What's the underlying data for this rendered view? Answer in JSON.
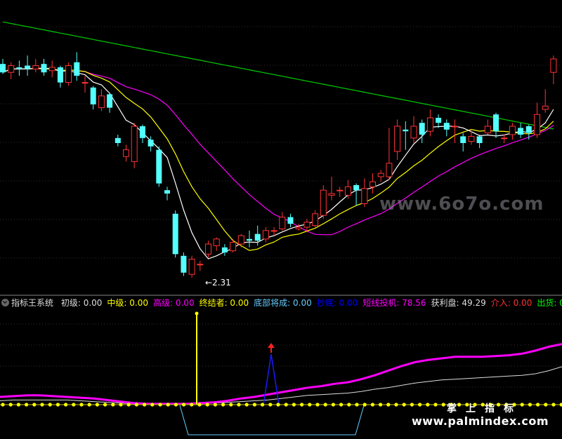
{
  "indicator": {
    "name": "指标王系统",
    "items": [
      {
        "label": "初级:",
        "value": "0.00",
        "color": "#dddddd"
      },
      {
        "label": "中级:",
        "value": "0.00",
        "color": "#ffff00"
      },
      {
        "label": "高级:",
        "value": "0.00",
        "color": "#ff00ff"
      },
      {
        "label": "终结者:",
        "value": "0.00",
        "color": "#ffff00"
      },
      {
        "label": "底部将成:",
        "value": "0.00",
        "color": "#66ccff"
      },
      {
        "label": "抄底:",
        "value": "0.00",
        "color": "#0000ff"
      },
      {
        "label": "短线投机:",
        "value": "78.56",
        "color": "#ff00ff"
      },
      {
        "label": "获利盘:",
        "value": "49.29",
        "color": "#dddddd"
      },
      {
        "label": "介入:",
        "value": "0.00",
        "color": "#ff3333"
      },
      {
        "label": "出货:",
        "value": "0.00",
        "color": "#00ff00"
      }
    ]
  },
  "low_marker": "←2.31",
  "watermarks": {
    "domain": "www.6o7o.com",
    "brand": "掌上指标",
    "url": "www.palmindex.com"
  },
  "colors": {
    "up": "#ff3333",
    "down": "#54ffff",
    "ma_short": "#ffffff",
    "ma_mid": "#ffff00",
    "ma_long": "#ff00ff",
    "ma_xlong": "#00cc00"
  },
  "chart_data": [
    {
      "type": "candlestick",
      "title": "",
      "ylim": [
        2.2,
        3.95
      ],
      "grid": true,
      "low_label": 2.31,
      "candles": [
        [
          3.57,
          3.52,
          3.6,
          3.51
        ],
        [
          3.52,
          3.56,
          3.58,
          3.48
        ],
        [
          3.55,
          3.54,
          3.59,
          3.5
        ],
        [
          3.56,
          3.54,
          3.62,
          3.5
        ],
        [
          3.54,
          3.56,
          3.6,
          3.52
        ],
        [
          3.57,
          3.52,
          3.6,
          3.5
        ],
        [
          3.53,
          3.55,
          3.59,
          3.49
        ],
        [
          3.55,
          3.46,
          3.56,
          3.43
        ],
        [
          3.46,
          3.56,
          3.58,
          3.44
        ],
        [
          3.58,
          3.5,
          3.64,
          3.47
        ],
        [
          3.46,
          3.46,
          3.5,
          3.4
        ],
        [
          3.43,
          3.33,
          3.44,
          3.3
        ],
        [
          3.31,
          3.38,
          3.42,
          3.29
        ],
        [
          3.39,
          3.31,
          3.4,
          3.28
        ],
        [
          3.13,
          3.1,
          3.15,
          3.08
        ],
        [
          3.02,
          3.06,
          3.09,
          2.99
        ],
        [
          2.99,
          3.2,
          3.22,
          2.95
        ],
        [
          3.2,
          3.13,
          3.21,
          3.1
        ],
        [
          3.12,
          3.08,
          3.14,
          3.05
        ],
        [
          3.06,
          2.86,
          3.08,
          2.84
        ],
        [
          2.82,
          2.8,
          2.84,
          2.76
        ],
        [
          2.68,
          2.44,
          2.7,
          2.42
        ],
        [
          2.43,
          2.33,
          2.45,
          2.31
        ],
        [
          2.32,
          2.41,
          2.43,
          2.3
        ],
        [
          2.38,
          2.38,
          2.4,
          2.34
        ],
        [
          2.44,
          2.5,
          2.52,
          2.42
        ],
        [
          2.49,
          2.53,
          2.54,
          2.46
        ],
        [
          2.48,
          2.45,
          2.5,
          2.43
        ],
        [
          2.46,
          2.51,
          2.53,
          2.45
        ],
        [
          2.5,
          2.55,
          2.56,
          2.48
        ],
        [
          2.53,
          2.52,
          2.58,
          2.48
        ],
        [
          2.56,
          2.52,
          2.61,
          2.49
        ],
        [
          2.53,
          2.58,
          2.6,
          2.51
        ],
        [
          2.58,
          2.58,
          2.6,
          2.55
        ],
        [
          2.59,
          2.66,
          2.69,
          2.58
        ],
        [
          2.66,
          2.62,
          2.68,
          2.6
        ],
        [
          2.59,
          2.6,
          2.62,
          2.58
        ],
        [
          2.6,
          2.63,
          2.65,
          2.57
        ],
        [
          2.61,
          2.68,
          2.7,
          2.6
        ],
        [
          2.67,
          2.82,
          2.85,
          2.65
        ],
        [
          2.79,
          2.8,
          2.9,
          2.76
        ],
        [
          2.82,
          2.82,
          2.84,
          2.78
        ],
        [
          2.79,
          2.84,
          2.88,
          2.77
        ],
        [
          2.85,
          2.82,
          2.86,
          2.73
        ],
        [
          2.74,
          2.83,
          2.89,
          2.72
        ],
        [
          2.84,
          2.87,
          2.92,
          2.8
        ],
        [
          2.9,
          2.92,
          2.94,
          2.87
        ],
        [
          2.9,
          2.98,
          3.19,
          2.88
        ],
        [
          3.05,
          3.2,
          3.24,
          3.0
        ],
        [
          3.18,
          3.17,
          3.23,
          3.06
        ],
        [
          3.13,
          3.2,
          3.26,
          3.1
        ],
        [
          3.22,
          3.15,
          3.24,
          3.1
        ],
        [
          3.17,
          3.25,
          3.3,
          3.14
        ],
        [
          3.25,
          3.22,
          3.27,
          3.19
        ],
        [
          3.22,
          3.18,
          3.24,
          3.14
        ],
        [
          3.2,
          3.2,
          3.24,
          3.1
        ],
        [
          3.14,
          3.1,
          3.16,
          3.05
        ],
        [
          3.11,
          3.14,
          3.18,
          3.09
        ],
        [
          3.14,
          3.1,
          3.15,
          3.07
        ],
        [
          3.16,
          3.2,
          3.24,
          3.15
        ],
        [
          3.27,
          3.17,
          3.28,
          3.13
        ],
        [
          3.13,
          3.13,
          3.15,
          3.1
        ],
        [
          3.15,
          3.2,
          3.22,
          3.12
        ],
        [
          3.19,
          3.15,
          3.22,
          3.13
        ],
        [
          3.2,
          3.16,
          3.21,
          3.12
        ],
        [
          3.15,
          3.27,
          3.34,
          3.13
        ],
        [
          3.3,
          3.32,
          3.42,
          3.28
        ],
        [
          3.52,
          3.6,
          3.62,
          3.45
        ]
      ]
    },
    {
      "type": "line",
      "title": "",
      "grid": true,
      "series": [
        {
          "name": "短线投机",
          "values": [
            10,
            11,
            12,
            12,
            11,
            10,
            9,
            8,
            6,
            4,
            2,
            1,
            1,
            1,
            1,
            2,
            3,
            5,
            8,
            10,
            13,
            16,
            19,
            22,
            24,
            27,
            29,
            33,
            38,
            44,
            50,
            55,
            58,
            60,
            62,
            62,
            62,
            63,
            64,
            66,
            70,
            75,
            78.56
          ]
        },
        {
          "name": "获利盘",
          "values": [
            5,
            6,
            6,
            6,
            6,
            6,
            5,
            4,
            3,
            2,
            1,
            1,
            1,
            1,
            1,
            1,
            2,
            3,
            4,
            5,
            6,
            8,
            10,
            12,
            13,
            14,
            15,
            17,
            20,
            22,
            25,
            28,
            30,
            32,
            33,
            34,
            35,
            36,
            37,
            38,
            40,
            44,
            49.29
          ]
        }
      ]
    }
  ]
}
